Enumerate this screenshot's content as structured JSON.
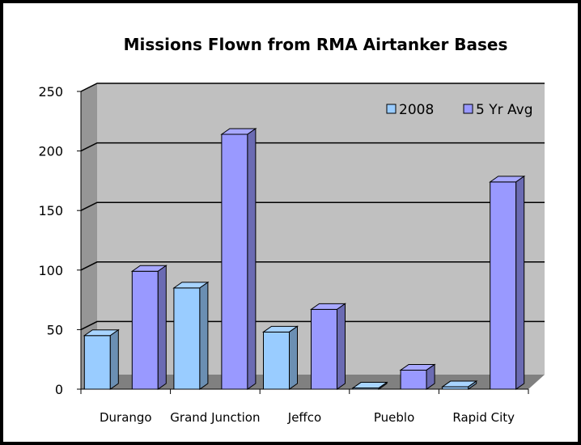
{
  "chart_data": {
    "type": "bar",
    "title": "Missions Flown from RMA Airtanker Bases",
    "categories": [
      "Durango",
      "Grand Junction",
      "Jeffco",
      "Pueblo",
      "Rapid City"
    ],
    "series": [
      {
        "name": "2008",
        "values": [
          45,
          85,
          48,
          1,
          2
        ],
        "color": "#99ccff"
      },
      {
        "name": "5 Yr Avg",
        "values": [
          99,
          214,
          67,
          16,
          174
        ],
        "color": "#9999ff"
      }
    ],
    "xlabel": "",
    "ylabel": "",
    "ylim": [
      0,
      250
    ],
    "yticks": [
      0,
      50,
      100,
      150,
      200,
      250
    ],
    "grid": true,
    "legend_position": "top-right",
    "style": "3d-clustered-column",
    "colors": {
      "wall": "#c0c0c0",
      "side_wall": "#969696",
      "floor": "#808080",
      "frame": "#000000"
    }
  }
}
